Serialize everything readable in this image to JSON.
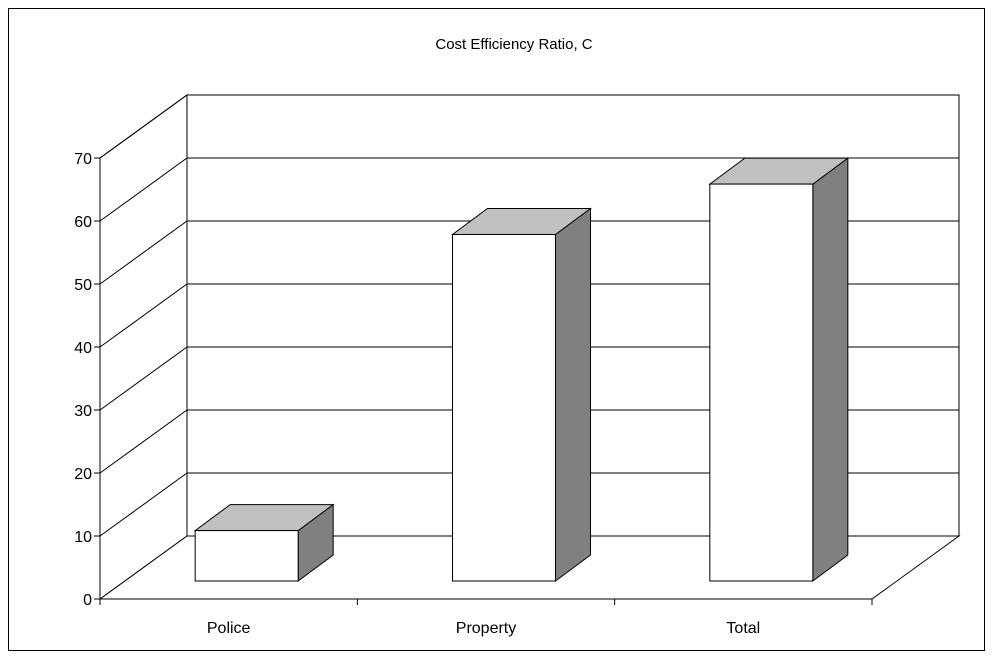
{
  "chart_data": {
    "type": "bar",
    "title": "Cost Efficiency Ratio, C",
    "categories": [
      "Police",
      "Property",
      "Total"
    ],
    "values": [
      8,
      55,
      63
    ],
    "xlabel": "",
    "ylabel": "",
    "ylim": [
      0,
      70
    ],
    "yticks": [
      0,
      10,
      20,
      30,
      40,
      50,
      60,
      70
    ],
    "grid": true,
    "legend": "none",
    "style": "3d-column",
    "colors": {
      "bar_front": "#ffffff",
      "bar_top": "#c0c0c0",
      "bar_side": "#808080",
      "walls": "#ffffff",
      "lines": "#000000"
    }
  }
}
